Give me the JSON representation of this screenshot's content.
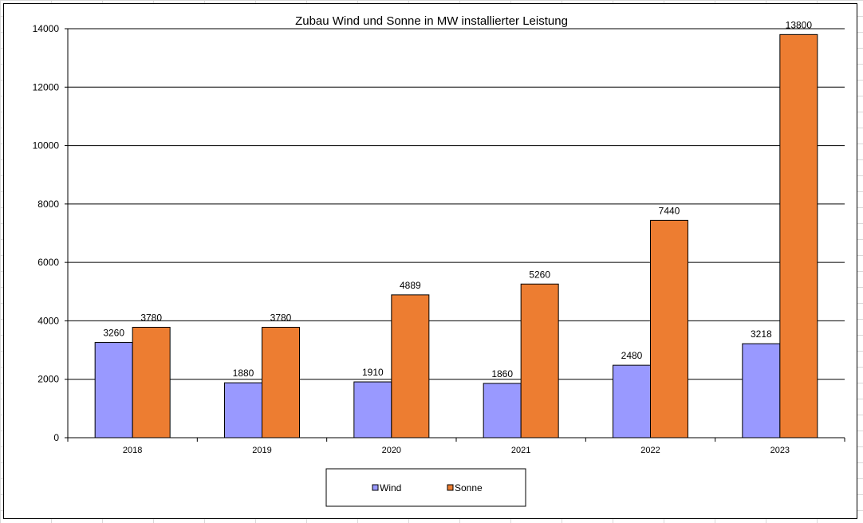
{
  "chart_data": {
    "type": "bar",
    "title": "Zubau Wind und Sonne in MW installierter Leistung",
    "xlabel": "",
    "ylabel": "",
    "categories": [
      "2018",
      "2019",
      "2020",
      "2021",
      "2022",
      "2023"
    ],
    "series": [
      {
        "name": "Wind",
        "color": "#9999ff",
        "values": [
          3260,
          1880,
          1910,
          1860,
          2480,
          3218
        ]
      },
      {
        "name": "Sonne",
        "color": "#ed7d31",
        "values": [
          3780,
          3780,
          4889,
          5260,
          7440,
          13800
        ]
      }
    ],
    "ylim": [
      0,
      14000
    ],
    "yticks": [
      0,
      2000,
      4000,
      6000,
      8000,
      10000,
      12000,
      14000
    ],
    "grid": true,
    "legend": "bottom"
  }
}
